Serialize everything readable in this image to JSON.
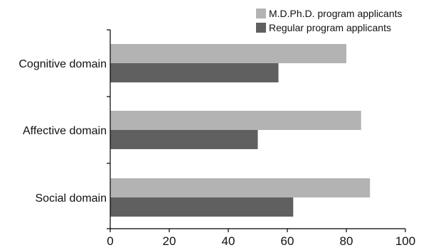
{
  "chart_data": {
    "type": "bar",
    "orientation": "horizontal",
    "title": "",
    "xlabel": "",
    "ylabel": "",
    "categories": [
      "Cognitive domain",
      "Affective domain",
      "Social domain"
    ],
    "series": [
      {
        "name": "M.D.Ph.D. program applicants",
        "values": [
          80,
          85,
          88
        ],
        "color": "#b3b3b3"
      },
      {
        "name": "Regular program applicants",
        "values": [
          57,
          50,
          62
        ],
        "color": "#606060"
      }
    ],
    "xlim": [
      0,
      100
    ],
    "xticks": [
      0,
      20,
      40,
      60,
      80,
      100
    ],
    "grid": false,
    "legend_position": "top-right"
  }
}
